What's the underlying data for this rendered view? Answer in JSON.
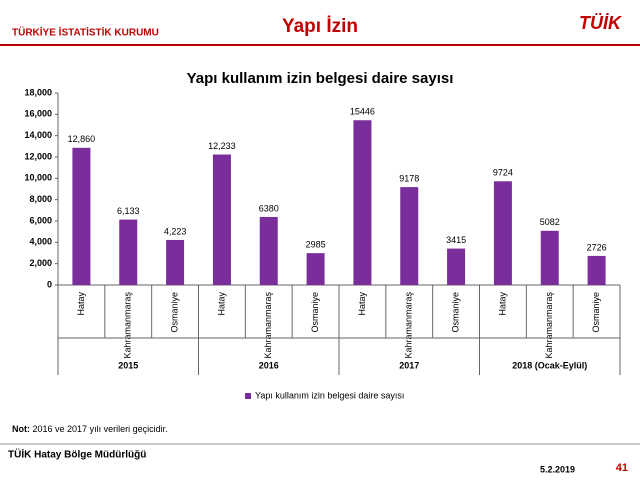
{
  "header": {
    "org": "TÜRKİYE İSTATİSTİK KURUMU",
    "title": "Yapı İzin",
    "logo": "TÜİK"
  },
  "chart_data": {
    "type": "bar",
    "title": "Yapı kullanım izin belgesi daire sayısı",
    "categories": [
      "Hatay",
      "Kahramanmaraş",
      "Osmaniye",
      "Hatay",
      "Kahramanmaraş",
      "Osmaniye",
      "Hatay",
      "Kahramanmaraş",
      "Osmaniye",
      "Hatay",
      "Kahramanmaraş",
      "Osmaniye"
    ],
    "category_groups": [
      "2015",
      "2016",
      "2017",
      "2018 (Ocak-Eylül)"
    ],
    "series": [
      {
        "name": "Yapı kullanım izin belgesi daire sayısı",
        "color": "#7a2e9c",
        "values": [
          12860,
          6133,
          4223,
          12233,
          6380,
          2985,
          15446,
          9178,
          3415,
          9724,
          5082,
          2726
        ],
        "value_labels": [
          "12,860",
          "6,133",
          "4,223",
          "12,233",
          "6380",
          "2985",
          "15446",
          "9178",
          "3415",
          "9724",
          "5082",
          "2726"
        ]
      }
    ],
    "ylim": [
      0,
      18000
    ],
    "yticks": [
      0,
      {
        "value": 2000,
        "label": "2,000"
      },
      {
        "value": 4000,
        "label": "4,000"
      },
      {
        "value": 6000,
        "label": "6,000"
      },
      {
        "value": 8000,
        "label": "8,000"
      },
      {
        "value": 10000,
        "label": "10,000"
      },
      {
        "value": 12000,
        "label": "12,000"
      },
      {
        "value": 14000,
        "label": "14,000"
      },
      {
        "value": 16000,
        "label": "16,000"
      },
      {
        "value": 18000,
        "label": "18,000"
      }
    ],
    "grid": false,
    "legend": "bottom"
  },
  "note": {
    "label": "Not:",
    "text": "2016 ve 2017 yılı verileri geçicidir."
  },
  "footer": {
    "office": "TÜİK Hatay Bölge Müdürlüğü",
    "date": "5.2.2019",
    "page": "41"
  }
}
